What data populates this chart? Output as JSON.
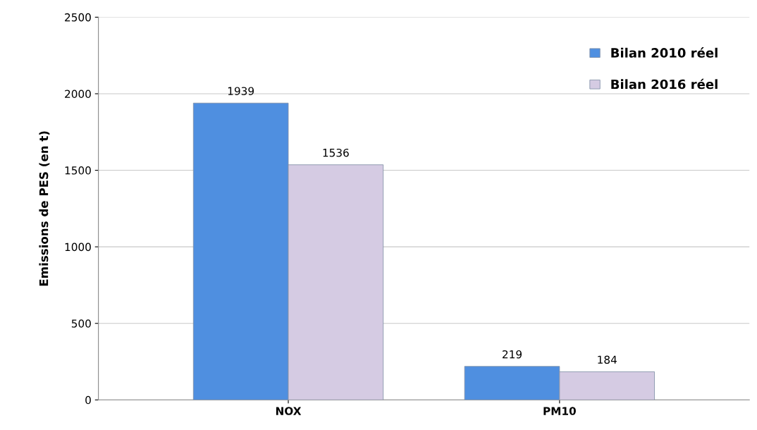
{
  "chart_data": {
    "type": "bar",
    "ylabel": "Emissions de PES (en t)",
    "categories": [
      "NOX",
      "PM10"
    ],
    "series": [
      {
        "name": "Bilan 2010 réel",
        "color": "#4f8fe0",
        "values": [
          1939,
          219
        ]
      },
      {
        "name": "Bilan 2016 réel",
        "color": "#d5cbe3",
        "values": [
          1536,
          184
        ]
      }
    ],
    "ylim": [
      0,
      2500
    ],
    "yticks": [
      0,
      500,
      1000,
      1500,
      2000,
      2500
    ],
    "grid": "y",
    "legend": "top right",
    "data_labels": true
  }
}
